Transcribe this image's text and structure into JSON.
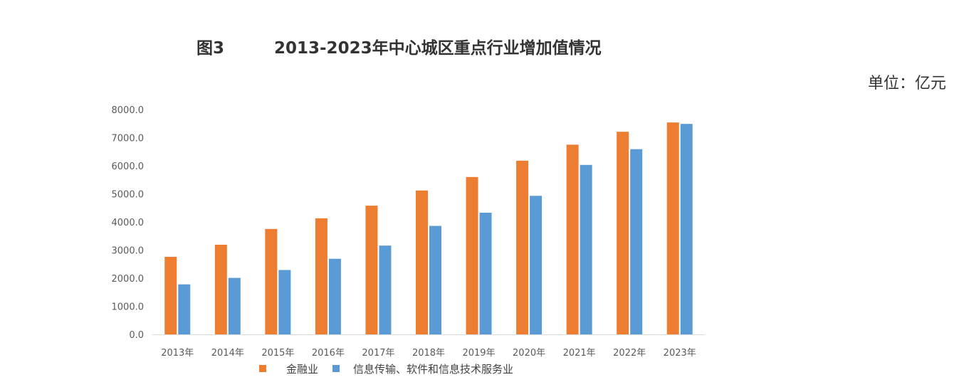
{
  "figure_label": "图3",
  "unit_label": "单位：亿元",
  "chart_data": {
    "type": "bar",
    "title": "2013-2023年中心城区重点行业增加值情况",
    "categories": [
      "2013年",
      "2014年",
      "2015年",
      "2016年",
      "2017年",
      "2018年",
      "2019年",
      "2020年",
      "2021年",
      "2022年",
      "2023年"
    ],
    "series": [
      {
        "name": "金融业",
        "color": "#ED7D31",
        "values": [
          2760,
          3190,
          3750,
          4130,
          4580,
          5120,
          5600,
          6180,
          6750,
          7210,
          7540
        ]
      },
      {
        "name": "信息传输、软件和信息技术服务业",
        "color": "#5B9BD5",
        "values": [
          1780,
          2010,
          2290,
          2690,
          3160,
          3860,
          4330,
          4930,
          6030,
          6590,
          7490
        ]
      }
    ],
    "yticks": [
      "0.0",
      "1000.0",
      "2000.0",
      "3000.0",
      "4000.0",
      "5000.0",
      "6000.0",
      "7000.0",
      "8000.0"
    ],
    "ylim": [
      0,
      8000
    ],
    "xlabel": "",
    "ylabel": "",
    "grid": false,
    "legend_position": "bottom"
  }
}
